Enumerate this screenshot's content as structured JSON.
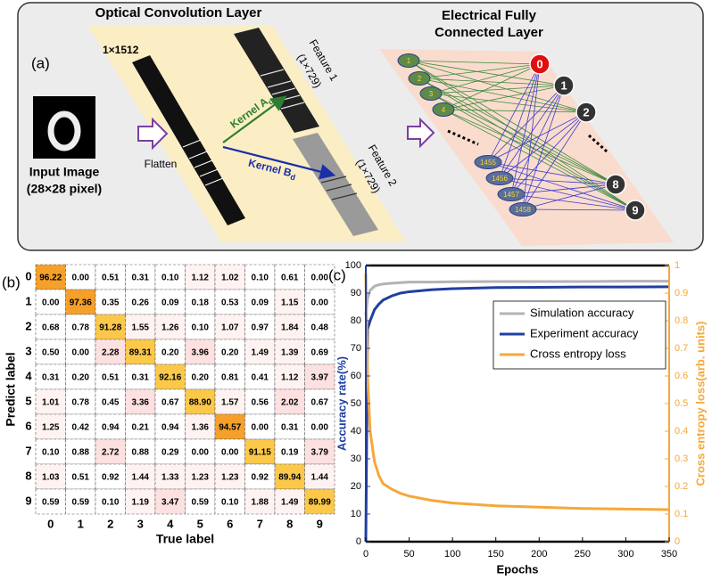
{
  "diagram": {
    "panel_label": "(a)",
    "optical_title": "Optical Convolution Layer",
    "electrical_title": [
      "Electrical Fully",
      "Connected Layer"
    ],
    "strip_label": "1×1512",
    "feature1": [
      "Feature 1",
      "(1×729)"
    ],
    "feature2": [
      "Feature 2",
      "(1×729)"
    ],
    "kernel_a": {
      "text": "Kernel A",
      "sub": "d"
    },
    "kernel_b": {
      "text": "Kernel B",
      "sub": "d"
    },
    "flatten": "Flatten",
    "input": [
      "Input Image",
      "(28×28 pixel)"
    ],
    "input_nodes": [
      "1",
      "2",
      "3",
      "4",
      "1455",
      "1456",
      "1457",
      "1458"
    ],
    "output_nodes": [
      "0",
      "1",
      "2",
      "8",
      "9"
    ]
  },
  "chart_data": [
    {
      "type": "heatmap",
      "panel_label": "(b)",
      "xlabel": "True label",
      "ylabel": "Predict label",
      "x_categories": [
        "0",
        "1",
        "2",
        "3",
        "4",
        "5",
        "6",
        "7",
        "8",
        "9"
      ],
      "y_categories": [
        "0",
        "1",
        "2",
        "3",
        "4",
        "5",
        "6",
        "7",
        "8",
        "9"
      ],
      "values": [
        [
          96.22,
          0,
          0.51,
          0.31,
          0.1,
          1.12,
          1.02,
          0.1,
          0.61,
          0
        ],
        [
          0,
          97.36,
          0.35,
          0.26,
          0.09,
          0.18,
          0.53,
          0.09,
          1.15,
          0
        ],
        [
          0.68,
          0.78,
          91.28,
          1.55,
          1.26,
          0.1,
          1.07,
          0.97,
          1.84,
          0.48
        ],
        [
          0.5,
          0,
          2.28,
          89.31,
          0.2,
          3.96,
          0.2,
          1.49,
          1.39,
          0.69
        ],
        [
          0.31,
          0.2,
          0.51,
          0.31,
          92.16,
          0.2,
          0.81,
          0.41,
          1.12,
          3.97
        ],
        [
          1.01,
          0.78,
          0.45,
          3.36,
          0.67,
          88.9,
          1.57,
          0.56,
          2.02,
          0.67
        ],
        [
          1.25,
          0.42,
          0.94,
          0.21,
          0.94,
          1.36,
          94.57,
          0,
          0.31,
          0
        ],
        [
          0.1,
          0.88,
          2.72,
          0.88,
          0.29,
          0,
          0,
          91.15,
          0.19,
          3.79
        ],
        [
          1.03,
          0.51,
          0.92,
          1.44,
          1.33,
          1.23,
          1.23,
          0.92,
          89.94,
          1.44
        ],
        [
          0.59,
          0.59,
          0.1,
          1.19,
          3.47,
          0.59,
          0.1,
          1.88,
          1.49,
          89.99
        ]
      ],
      "value_labels": [
        [
          "96.22",
          "0.00",
          "0.51",
          "0.31",
          "0.10",
          "1.12",
          "1.02",
          "0.10",
          "0.61",
          "0.00"
        ],
        [
          "0.00",
          "97.36",
          "0.35",
          "0.26",
          "0.09",
          "0.18",
          "0.53",
          "0.09",
          "1.15",
          "0.00"
        ],
        [
          "0.68",
          "0.78",
          "91.28",
          "1.55",
          "1.26",
          "0.10",
          "1.07",
          "0.97",
          "1.84",
          "0.48"
        ],
        [
          "0.50",
          "0.00",
          "2.28",
          "89.31",
          "0.20",
          "3.96",
          "0.20",
          "1.49",
          "1.39",
          "0.69"
        ],
        [
          "0.31",
          "0.20",
          "0.51",
          "0.31",
          "92.16",
          "0.20",
          "0.81",
          "0.41",
          "1.12",
          "3.97"
        ],
        [
          "1.01",
          "0.78",
          "0.45",
          "3.36",
          "0.67",
          "88.90",
          "1.57",
          "0.56",
          "2.02",
          "0.67"
        ],
        [
          "1.25",
          "0.42",
          "0.94",
          "0.21",
          "0.94",
          "1.36",
          "94.57",
          "0.00",
          "0.31",
          "0.00"
        ],
        [
          "0.10",
          "0.88",
          "2.72",
          "0.88",
          "0.29",
          "0.00",
          "0.00",
          "91.15",
          "0.19",
          "3.79"
        ],
        [
          "1.03",
          "0.51",
          "0.92",
          "1.44",
          "1.33",
          "1.23",
          "1.23",
          "0.92",
          "89.94",
          "1.44"
        ],
        [
          "0.59",
          "0.59",
          "0.10",
          "1.19",
          "3.47",
          "0.59",
          "0.10",
          "1.88",
          "1.49",
          "89.99"
        ]
      ]
    },
    {
      "type": "line",
      "panel_label": "(c)",
      "xlabel": "Epochs",
      "ylabel": "Accuracy rate(%)",
      "y2label": "Cross entropy loss(arb. units)",
      "x": [
        0,
        2,
        5,
        10,
        15,
        20,
        30,
        40,
        50,
        75,
        100,
        150,
        200,
        250,
        300,
        350
      ],
      "series": [
        {
          "name": "Simulation accuracy",
          "color": "#b3b3b3",
          "values": [
            82,
            88,
            91,
            92.5,
            93,
            93.3,
            93.6,
            93.8,
            94,
            94,
            94.1,
            94.2,
            94.2,
            94.2,
            94.3,
            94.3
          ]
        },
        {
          "name": "Experiment accuracy",
          "color": "#1f3fa0",
          "values": [
            0,
            77,
            80,
            84,
            86,
            87.5,
            89,
            90,
            90.5,
            91.2,
            91.6,
            92,
            92.1,
            92.2,
            92.2,
            92.3
          ]
        },
        {
          "name": "Cross entropy loss",
          "color": "#f5a83a",
          "axis": "y2",
          "values": [
            0.97,
            0.6,
            0.4,
            0.29,
            0.24,
            0.21,
            0.19,
            0.175,
            0.165,
            0.15,
            0.14,
            0.13,
            0.125,
            0.12,
            0.118,
            0.116
          ]
        }
      ],
      "xlim": [
        0,
        350
      ],
      "xticks": [
        0,
        50,
        100,
        150,
        200,
        250,
        300,
        350
      ],
      "ylim": [
        0,
        100
      ],
      "yticks": [
        0,
        10,
        20,
        30,
        40,
        50,
        60,
        70,
        80,
        90,
        100
      ],
      "y2lim": [
        0,
        1
      ],
      "y2ticks": [
        0,
        0.1,
        0.2,
        0.3,
        0.4,
        0.5,
        0.6,
        0.7,
        0.8,
        0.9,
        1
      ]
    }
  ]
}
